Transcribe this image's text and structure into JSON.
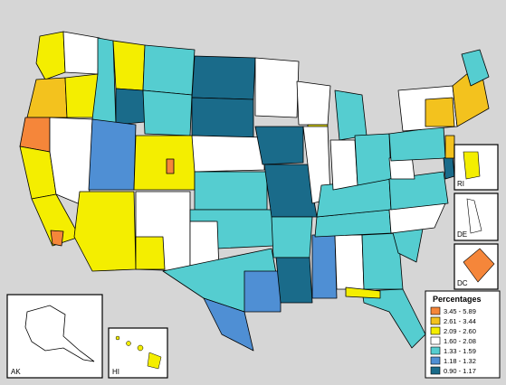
{
  "insets": {
    "ak": "AK",
    "hi": "HI",
    "ri": "RI",
    "de": "DE",
    "dc": "DC"
  },
  "legend": {
    "title": "Percentages",
    "classes": [
      {
        "label": "3.45 - 5.89",
        "color": "#f5863a"
      },
      {
        "label": "2.61 - 3.44",
        "color": "#f3c21e"
      },
      {
        "label": "2.09 - 2.60",
        "color": "#f4ee00"
      },
      {
        "label": "1.60 - 2.08",
        "color": "#ffffff"
      },
      {
        "label": "1.33 - 1.59",
        "color": "#55cdd0"
      },
      {
        "label": "1.18 - 1.32",
        "color": "#4f8fd4"
      },
      {
        "label": "0.90 - 1.17",
        "color": "#1a6b8a"
      }
    ]
  }
}
